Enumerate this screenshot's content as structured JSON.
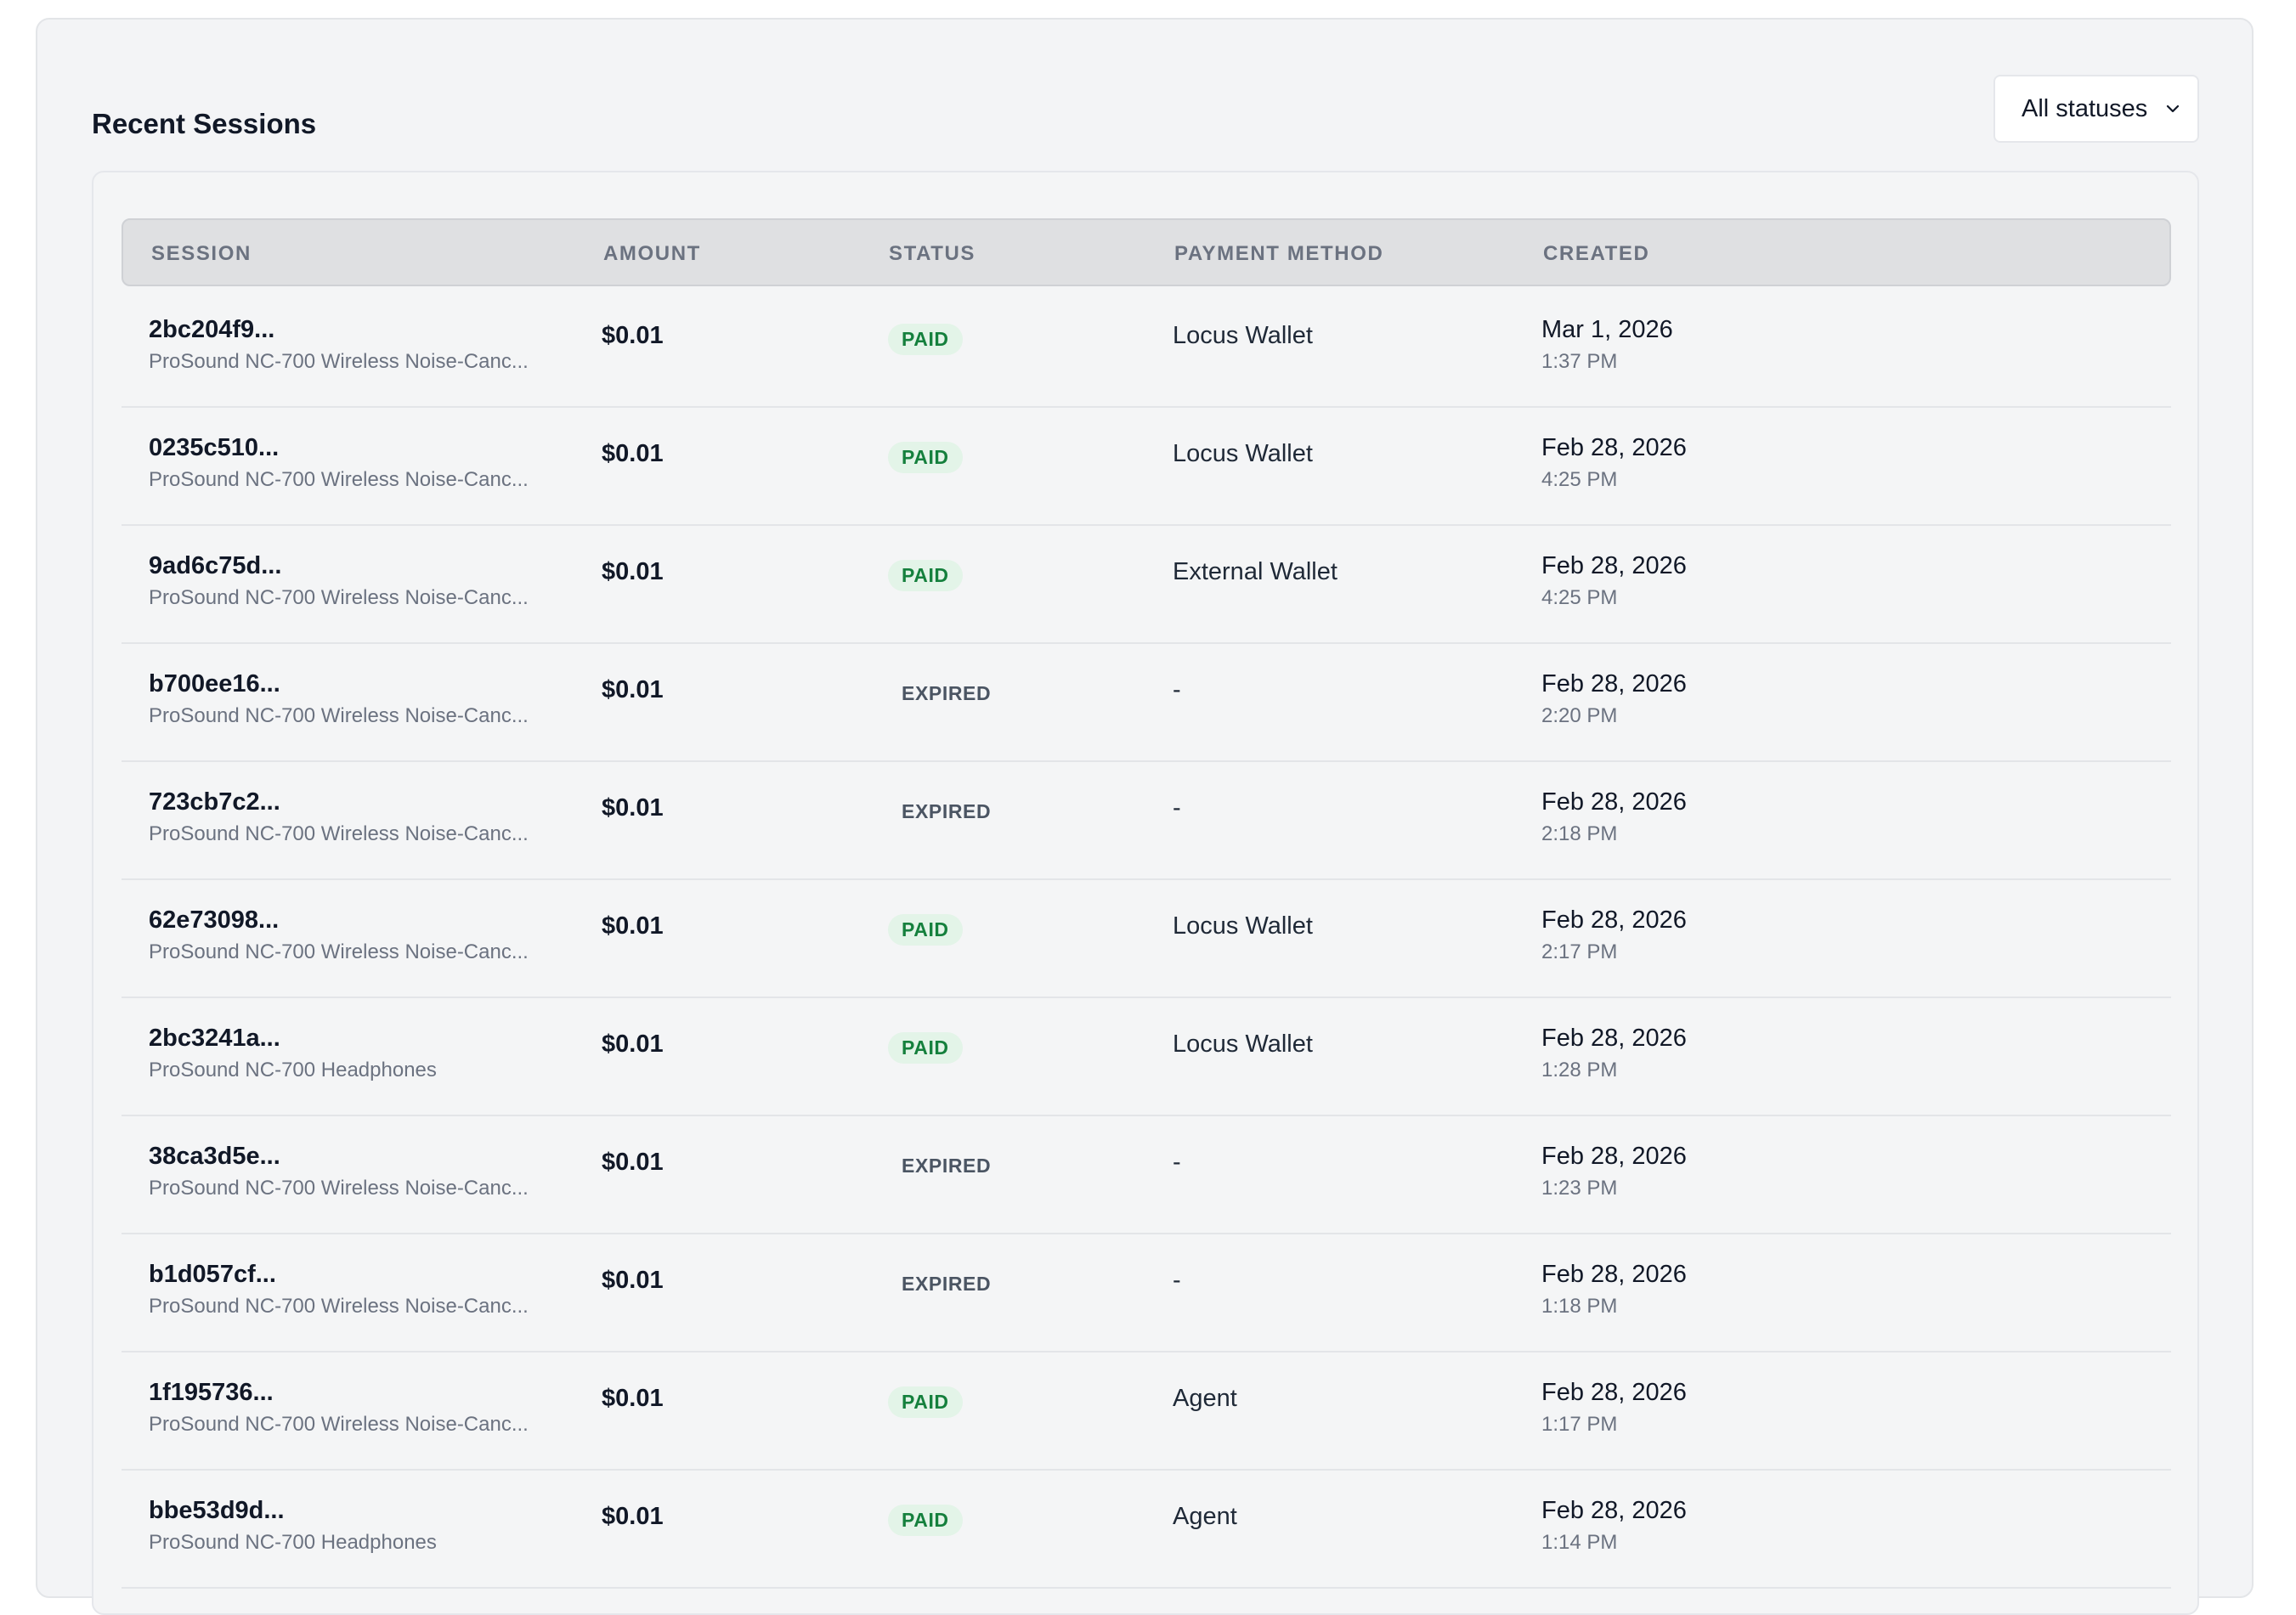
{
  "panel": {
    "title": "Recent Sessions",
    "filter": {
      "selected": "All statuses",
      "icon": "chevron-down-icon"
    }
  },
  "table": {
    "columns": [
      "SESSION",
      "AMOUNT",
      "STATUS",
      "PAYMENT METHOD",
      "CREATED"
    ],
    "rows": [
      {
        "id": "2bc204f9...",
        "product": "ProSound NC-700 Wireless Noise-Canc...",
        "amount": "$0.01",
        "status": "PAID",
        "method": "Locus Wallet",
        "date": "Mar 1, 2026",
        "time": "1:37 PM"
      },
      {
        "id": "0235c510...",
        "product": "ProSound NC-700 Wireless Noise-Canc...",
        "amount": "$0.01",
        "status": "PAID",
        "method": "Locus Wallet",
        "date": "Feb 28, 2026",
        "time": "4:25 PM"
      },
      {
        "id": "9ad6c75d...",
        "product": "ProSound NC-700 Wireless Noise-Canc...",
        "amount": "$0.01",
        "status": "PAID",
        "method": "External Wallet",
        "date": "Feb 28, 2026",
        "time": "4:25 PM"
      },
      {
        "id": "b700ee16...",
        "product": "ProSound NC-700 Wireless Noise-Canc...",
        "amount": "$0.01",
        "status": "EXPIRED",
        "method": "-",
        "date": "Feb 28, 2026",
        "time": "2:20 PM"
      },
      {
        "id": "723cb7c2...",
        "product": "ProSound NC-700 Wireless Noise-Canc...",
        "amount": "$0.01",
        "status": "EXPIRED",
        "method": "-",
        "date": "Feb 28, 2026",
        "time": "2:18 PM"
      },
      {
        "id": "62e73098...",
        "product": "ProSound NC-700 Wireless Noise-Canc...",
        "amount": "$0.01",
        "status": "PAID",
        "method": "Locus Wallet",
        "date": "Feb 28, 2026",
        "time": "2:17 PM"
      },
      {
        "id": "2bc3241a...",
        "product": "ProSound NC-700 Headphones",
        "amount": "$0.01",
        "status": "PAID",
        "method": "Locus Wallet",
        "date": "Feb 28, 2026",
        "time": "1:28 PM"
      },
      {
        "id": "38ca3d5e...",
        "product": "ProSound NC-700 Wireless Noise-Canc...",
        "amount": "$0.01",
        "status": "EXPIRED",
        "method": "-",
        "date": "Feb 28, 2026",
        "time": "1:23 PM"
      },
      {
        "id": "b1d057cf...",
        "product": "ProSound NC-700 Wireless Noise-Canc...",
        "amount": "$0.01",
        "status": "EXPIRED",
        "method": "-",
        "date": "Feb 28, 2026",
        "time": "1:18 PM"
      },
      {
        "id": "1f195736...",
        "product": "ProSound NC-700 Wireless Noise-Canc...",
        "amount": "$0.01",
        "status": "PAID",
        "method": "Agent",
        "date": "Feb 28, 2026",
        "time": "1:17 PM"
      },
      {
        "id": "bbe53d9d...",
        "product": "ProSound NC-700 Headphones",
        "amount": "$0.01",
        "status": "PAID",
        "method": "Agent",
        "date": "Feb 28, 2026",
        "time": "1:14 PM"
      }
    ]
  },
  "colors": {
    "panel_bg": "#f3f4f6",
    "header_bg": "#dfe0e2",
    "paid_text": "#15803d",
    "paid_bg": "#e3f4e8",
    "expired_text": "#4b5563"
  }
}
